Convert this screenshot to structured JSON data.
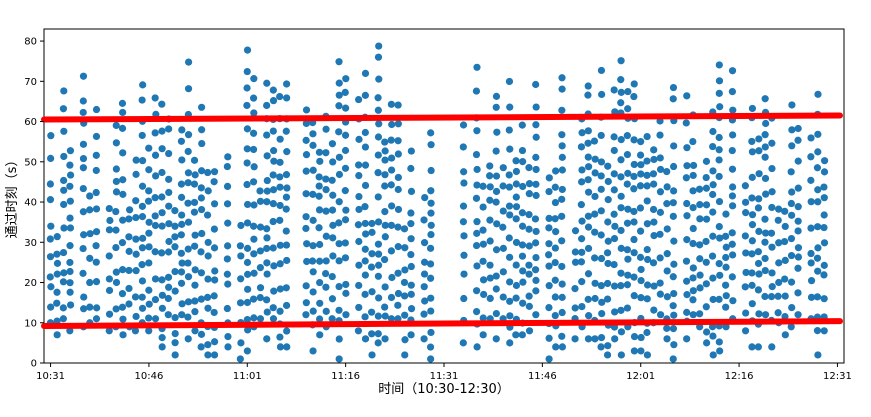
{
  "chart_data": {
    "type": "scatter",
    "xlabel": "时间（10:30-12:30）",
    "ylabel": "通过时刻（s）",
    "xlim": [
      0,
      122
    ],
    "ylim": [
      0,
      83
    ],
    "x_ticks": [
      {
        "value": 1,
        "label": "10:31"
      },
      {
        "value": 16,
        "label": "10:46"
      },
      {
        "value": 31,
        "label": "11:01"
      },
      {
        "value": 46,
        "label": "11:16"
      },
      {
        "value": 61,
        "label": "11:31"
      },
      {
        "value": 76,
        "label": "11:46"
      },
      {
        "value": 91,
        "label": "12:01"
      },
      {
        "value": 106,
        "label": "12:16"
      },
      {
        "value": 121,
        "label": "12:31"
      }
    ],
    "y_ticks": [
      0,
      10,
      20,
      30,
      40,
      50,
      60,
      70,
      80
    ],
    "grid": false,
    "series": [
      {
        "color": "#1f77b4",
        "x_start": 1,
        "x_end": 119,
        "points_per_minute_approx": 16,
        "y_range": [
          1,
          80
        ]
      }
    ],
    "reference_lines": [
      {
        "color": "#ff0000",
        "y_start": 60.5,
        "y_end": 61.5
      },
      {
        "color": "#ff0000",
        "y_start": 9.2,
        "y_end": 10.4
      }
    ]
  }
}
